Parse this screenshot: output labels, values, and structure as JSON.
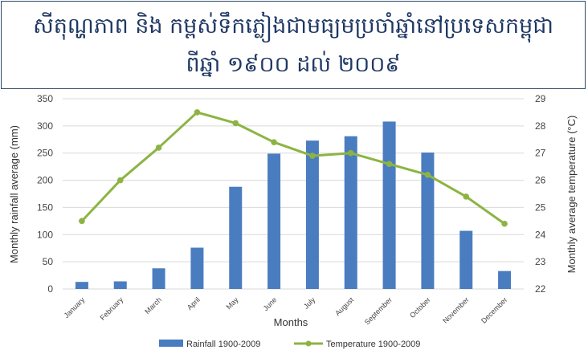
{
  "title": {
    "line1": "សីតុណ្ហភាព និង កម្ពស់ទឹកភ្លៀងជាមធ្យមប្រចាំឆ្នាំនៅប្រទេសកម្ពុជា",
    "line2": "ពីឆ្នាំ ១៩០០ ដល់ ២០០៩"
  },
  "chart_data": {
    "type": "bar",
    "categories": [
      "January",
      "February",
      "March",
      "April",
      "May",
      "June",
      "July",
      "August",
      "September",
      "October",
      "November",
      "December"
    ],
    "xlabel": "Months",
    "ylabel": "Monthly rainfall average (mm)",
    "y2label": "Monthly average temperature (°C)",
    "ylim": [
      0,
      350
    ],
    "y2lim": [
      22,
      29
    ],
    "yticks": [
      "0",
      "50",
      "100",
      "150",
      "200",
      "250",
      "300",
      "350"
    ],
    "y2ticks": [
      "22",
      "23",
      "24",
      "25",
      "26",
      "27",
      "28",
      "29"
    ],
    "series": [
      {
        "name": "Rainfall 1900-2009",
        "type": "bar",
        "color": "#4a7cc0",
        "values": [
          13,
          14,
          38,
          76,
          188,
          249,
          273,
          281,
          308,
          251,
          107,
          33
        ]
      },
      {
        "name": "Temperature 1900-2009",
        "type": "line",
        "axis": "right",
        "color": "#8db443",
        "values": [
          24.5,
          26.0,
          27.2,
          28.5,
          28.1,
          27.4,
          26.9,
          27.0,
          26.6,
          26.2,
          25.4,
          24.4
        ]
      }
    ],
    "grid": true,
    "legend": "bottom"
  }
}
